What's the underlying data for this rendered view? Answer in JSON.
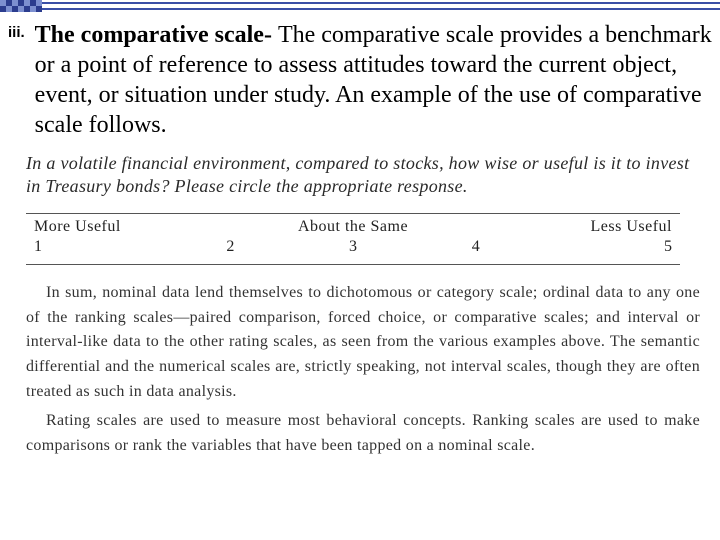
{
  "decor": {
    "line_color": "#3a4fa6",
    "squares": [
      "#7c8fd0",
      "#2b3c8e",
      "#7c8fd0",
      "#2b3c8e",
      "#7c8fd0",
      "#2b3c8e",
      "#7c8fd0",
      "#2b3c8e",
      "#7c8fd0",
      "#2b3c8e",
      "#7c8fd0",
      "#2b3c8e",
      "#7c8fd0",
      "#2b3c8e"
    ]
  },
  "list": {
    "marker": "iii.",
    "heading": "The comparative scale- ",
    "body": "The comparative scale provides a benchmark or a point of reference to assess attitudes toward the current object, event, or situation under study. An example of the use of comparative scale follows."
  },
  "prompt": "In a volatile financial environment, compared to stocks, how wise or useful is it to invest in Treasury bonds? Please circle the appropriate response.",
  "scale": {
    "labels": {
      "left": "More Useful",
      "mid": "About the Same",
      "right": "Less Useful"
    },
    "nums": [
      "1",
      "2",
      "3",
      "4",
      "5"
    ]
  },
  "paragraphs": {
    "p1": "In sum, nominal data lend themselves to dichotomous or category scale; ordinal data to any one of the ranking scales—paired comparison, forced choice, or comparative scales; and interval or interval-like data to the other rating scales, as seen from the various examples above. The semantic differential and the numerical scales are, strictly speaking, not interval scales, though they are often treated as such in data analysis.",
    "p2": "Rating scales are used to measure most behavioral concepts. Ranking scales are used to make comparisons or rank the variables that have been tapped on a nominal scale."
  }
}
